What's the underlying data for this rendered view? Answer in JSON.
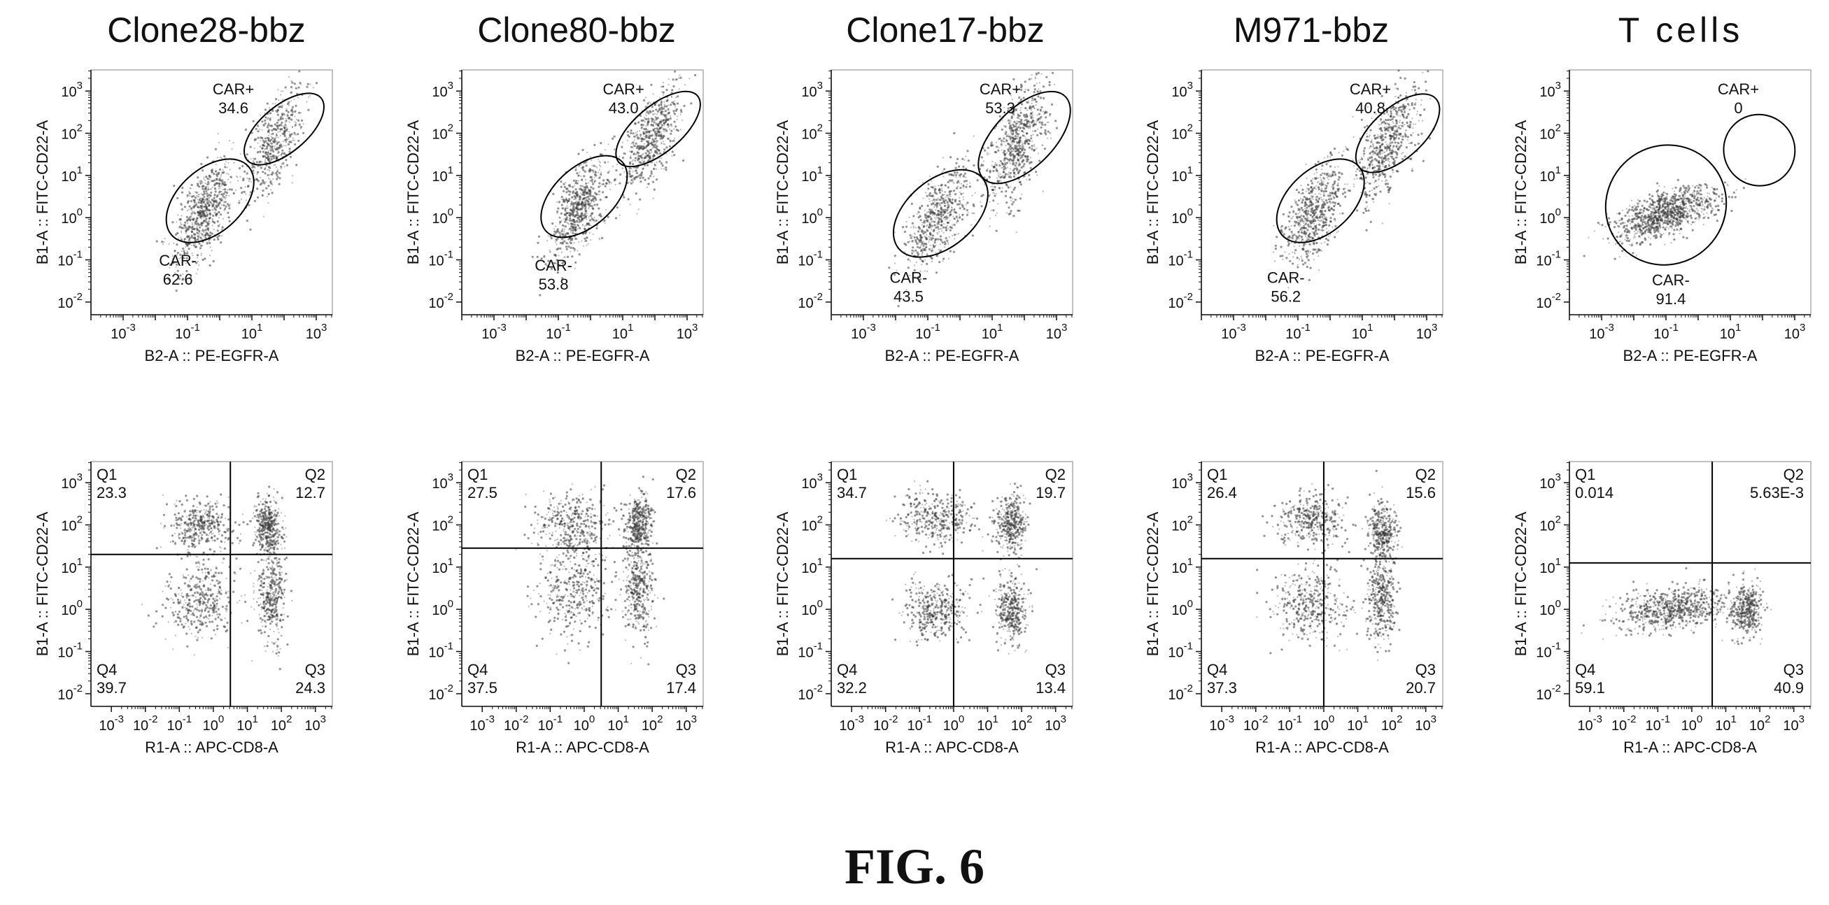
{
  "figure_label": "FIG. 6",
  "colors": {
    "ink": "#111111",
    "dense": "#3a3a3a",
    "gate_line": "#000000"
  },
  "chart_data": [
    {
      "type": "scatter",
      "title": "Clone28-bbz",
      "xlabel": "B2-A :: PE-EGFR-A",
      "ylabel": "B1-A :: FITC-CD22-A",
      "x_ticks": [
        "10^-3",
        "10^-1",
        "10^1",
        "10^3"
      ],
      "y_ticks": [
        "10^-2",
        "10^-1",
        "10^0",
        "10^1",
        "10^2",
        "10^3"
      ],
      "xlim_log10": [
        -4,
        3.5
      ],
      "ylim_log10": [
        -2.3,
        3.5
      ],
      "gates": [
        {
          "name": "CAR+",
          "value": "34.6"
        },
        {
          "name": "CAR-",
          "value": "62.6"
        }
      ]
    },
    {
      "type": "scatter",
      "title": "Clone80-bbz",
      "xlabel": "B2-A :: PE-EGFR-A",
      "ylabel": "B1-A :: FITC-CD22-A",
      "x_ticks": [
        "10^-3",
        "10^-1",
        "10^1",
        "10^3"
      ],
      "y_ticks": [
        "10^-2",
        "10^-1",
        "10^0",
        "10^1",
        "10^2",
        "10^3"
      ],
      "xlim_log10": [
        -4,
        3.5
      ],
      "ylim_log10": [
        -2.3,
        3.5
      ],
      "gates": [
        {
          "name": "CAR+",
          "value": "43.0"
        },
        {
          "name": "CAR-",
          "value": "53.8"
        }
      ]
    },
    {
      "type": "scatter",
      "title": "Clone17-bbz",
      "xlabel": "B2-A :: PE-EGFR-A",
      "ylabel": "B1-A :: FITC-CD22-A",
      "x_ticks": [
        "10^-3",
        "10^-1",
        "10^1",
        "10^3"
      ],
      "y_ticks": [
        "10^-2",
        "10^-1",
        "10^0",
        "10^1",
        "10^2",
        "10^3"
      ],
      "xlim_log10": [
        -4,
        3.5
      ],
      "ylim_log10": [
        -2.3,
        3.5
      ],
      "gates": [
        {
          "name": "CAR+",
          "value": "53.3"
        },
        {
          "name": "CAR-",
          "value": "43.5"
        }
      ]
    },
    {
      "type": "scatter",
      "title": "M971-bbz",
      "xlabel": "B2-A :: PE-EGFR-A",
      "ylabel": "B1-A :: FITC-CD22-A",
      "x_ticks": [
        "10^-3",
        "10^-1",
        "10^1",
        "10^3"
      ],
      "y_ticks": [
        "10^-2",
        "10^-1",
        "10^0",
        "10^1",
        "10^2",
        "10^3"
      ],
      "xlim_log10": [
        -4,
        3.5
      ],
      "ylim_log10": [
        -2.3,
        3.5
      ],
      "gates": [
        {
          "name": "CAR+",
          "value": "40.8"
        },
        {
          "name": "CAR-",
          "value": "56.2"
        }
      ]
    },
    {
      "type": "scatter",
      "title": "T cells",
      "xlabel": "B2-A :: PE-EGFR-A",
      "ylabel": "B1-A :: FITC-CD22-A",
      "x_ticks": [
        "10^-3",
        "10^-1",
        "10^1",
        "10^3"
      ],
      "y_ticks": [
        "10^-2",
        "10^-1",
        "10^0",
        "10^1",
        "10^2",
        "10^3"
      ],
      "xlim_log10": [
        -4,
        3.5
      ],
      "ylim_log10": [
        -2.3,
        3.5
      ],
      "gates": [
        {
          "name": "CAR+",
          "value": "0"
        },
        {
          "name": "CAR-",
          "value": "91.4"
        }
      ]
    },
    {
      "type": "scatter",
      "title": "",
      "xlabel": "R1-A :: APC-CD8-A",
      "ylabel": "B1-A :: FITC-CD22-A",
      "x_ticks": [
        "10^-3",
        "10^-2",
        "10^-1",
        "10^0",
        "10^1",
        "10^2",
        "10^3"
      ],
      "y_ticks": [
        "10^-2",
        "10^-1",
        "10^0",
        "10^1",
        "10^2",
        "10^3"
      ],
      "xlim_log10": [
        -3.6,
        3.5
      ],
      "ylim_log10": [
        -2.3,
        3.5
      ],
      "quadrants": [
        {
          "name": "Q1",
          "value": "23.3"
        },
        {
          "name": "Q2",
          "value": "12.7"
        },
        {
          "name": "Q3",
          "value": "24.3"
        },
        {
          "name": "Q4",
          "value": "39.7"
        }
      ]
    },
    {
      "type": "scatter",
      "title": "",
      "xlabel": "R1-A :: APC-CD8-A",
      "ylabel": "B1-A :: FITC-CD22-A",
      "x_ticks": [
        "10^-3",
        "10^-2",
        "10^-1",
        "10^0",
        "10^1",
        "10^2",
        "10^3"
      ],
      "y_ticks": [
        "10^-2",
        "10^-1",
        "10^0",
        "10^1",
        "10^2",
        "10^3"
      ],
      "xlim_log10": [
        -3.6,
        3.5
      ],
      "ylim_log10": [
        -2.3,
        3.5
      ],
      "quadrants": [
        {
          "name": "Q1",
          "value": "27.5"
        },
        {
          "name": "Q2",
          "value": "17.6"
        },
        {
          "name": "Q3",
          "value": "17.4"
        },
        {
          "name": "Q4",
          "value": "37.5"
        }
      ]
    },
    {
      "type": "scatter",
      "title": "",
      "xlabel": "R1-A :: APC-CD8-A",
      "ylabel": "B1-A :: FITC-CD22-A",
      "x_ticks": [
        "10^-3",
        "10^-2",
        "10^-1",
        "10^0",
        "10^1",
        "10^2",
        "10^3"
      ],
      "y_ticks": [
        "10^-2",
        "10^-1",
        "10^0",
        "10^1",
        "10^2",
        "10^3"
      ],
      "xlim_log10": [
        -3.6,
        3.5
      ],
      "ylim_log10": [
        -2.3,
        3.5
      ],
      "quadrants": [
        {
          "name": "Q1",
          "value": "34.7"
        },
        {
          "name": "Q2",
          "value": "19.7"
        },
        {
          "name": "Q3",
          "value": "13.4"
        },
        {
          "name": "Q4",
          "value": "32.2"
        }
      ]
    },
    {
      "type": "scatter",
      "title": "",
      "xlabel": "R1-A :: APC-CD8-A",
      "ylabel": "B1-A :: FITC-CD22-A",
      "x_ticks": [
        "10^-3",
        "10^-2",
        "10^-1",
        "10^0",
        "10^1",
        "10^2",
        "10^3"
      ],
      "y_ticks": [
        "10^-2",
        "10^-1",
        "10^0",
        "10^1",
        "10^2",
        "10^3"
      ],
      "xlim_log10": [
        -3.6,
        3.5
      ],
      "ylim_log10": [
        -2.3,
        3.5
      ],
      "quadrants": [
        {
          "name": "Q1",
          "value": "26.4"
        },
        {
          "name": "Q2",
          "value": "15.6"
        },
        {
          "name": "Q3",
          "value": "20.7"
        },
        {
          "name": "Q4",
          "value": "37.3"
        }
      ]
    },
    {
      "type": "scatter",
      "title": "",
      "xlabel": "R1-A :: APC-CD8-A",
      "ylabel": "B1-A :: FITC-CD22-A",
      "x_ticks": [
        "10^-3",
        "10^-2",
        "10^-1",
        "10^0",
        "10^1",
        "10^2",
        "10^3"
      ],
      "y_ticks": [
        "10^-2",
        "10^-1",
        "10^0",
        "10^1",
        "10^2",
        "10^3"
      ],
      "xlim_log10": [
        -3.6,
        3.5
      ],
      "ylim_log10": [
        -2.3,
        3.5
      ],
      "quadrants": [
        {
          "name": "Q1",
          "value": "0.014"
        },
        {
          "name": "Q2",
          "value": "5.63E-3"
        },
        {
          "name": "Q3",
          "value": "40.9"
        },
        {
          "name": "Q4",
          "value": "59.1"
        }
      ]
    }
  ]
}
